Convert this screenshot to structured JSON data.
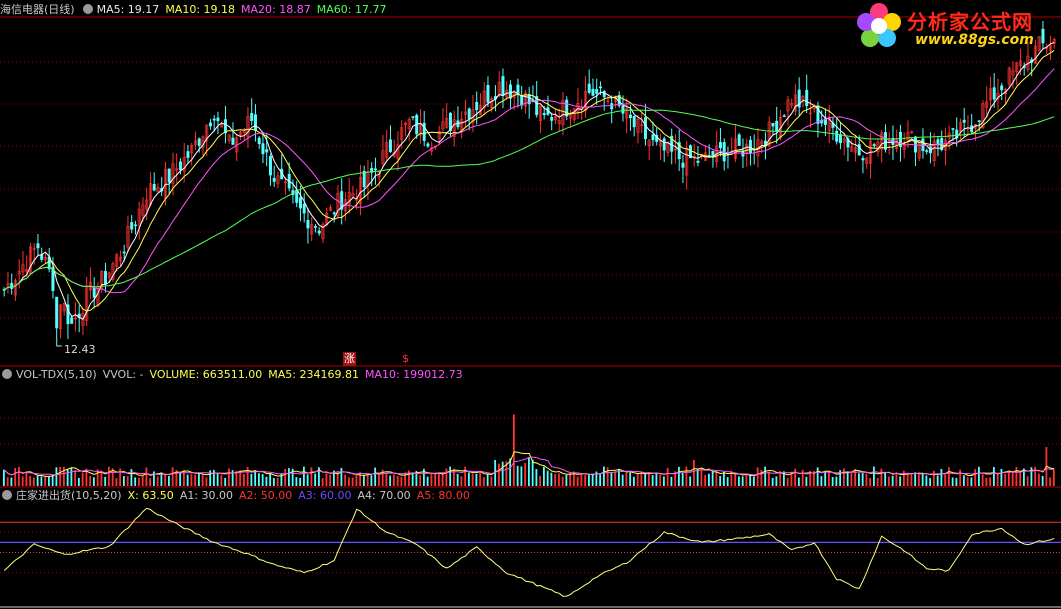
{
  "main_header": {
    "title": "海信电器(日线)",
    "ma5": "MA5: 19.17",
    "ma10": "MA10: 19.18",
    "ma20": "MA20: 18.87",
    "ma60": "MA60: 17.77"
  },
  "vol_header": {
    "title": "VOL-TDX(5,10)",
    "vvol": "VVOL: -",
    "volume": "VOLUME: 663511.00",
    "ma5": "MA5: 234169.81",
    "ma10": "MA10: 199012.73"
  },
  "ind_header": {
    "title": "庄家进出货(10,5,20)",
    "x": "X: 63.50",
    "a1": "A1: 30.00",
    "a2": "A2: 50.00",
    "a3": "A3: 60.00",
    "a4": "A4: 70.00",
    "a5": "A5: 80.00"
  },
  "low_label": "12.43",
  "flags": [
    "涨",
    "$"
  ],
  "logo": {
    "name": "分析家公式网",
    "url": "www.88gs.com"
  },
  "colors": {
    "up": "#ff3232",
    "down": "#54ffff",
    "ma5": "#ffffff",
    "ma10": "#ffff54",
    "ma20": "#ff54ff",
    "ma60": "#54ff54",
    "grid": "#8b0000",
    "a3": "#6c4cff"
  },
  "chart_data": [
    {
      "type": "candlestick",
      "name": "海信电器(日线)",
      "ylim": [
        12.43,
        22.5
      ],
      "price_anchors": [
        [
          0,
          14.2
        ],
        [
          5,
          15.0
        ],
        [
          9,
          15.6
        ],
        [
          14,
          14.2
        ],
        [
          18,
          13.1
        ],
        [
          22,
          14.0
        ],
        [
          27,
          14.6
        ],
        [
          32,
          15.6
        ],
        [
          38,
          17.3
        ],
        [
          44,
          17.8
        ],
        [
          50,
          18.6
        ],
        [
          56,
          19.9
        ],
        [
          60,
          18.8
        ],
        [
          66,
          19.6
        ],
        [
          72,
          17.8
        ],
        [
          78,
          16.8
        ],
        [
          84,
          16.2
        ],
        [
          90,
          17.1
        ],
        [
          96,
          17.5
        ],
        [
          102,
          18.6
        ],
        [
          108,
          19.5
        ],
        [
          114,
          19.0
        ],
        [
          120,
          19.6
        ],
        [
          126,
          20.1
        ],
        [
          132,
          20.7
        ],
        [
          138,
          20.4
        ],
        [
          144,
          19.6
        ],
        [
          150,
          20.0
        ],
        [
          156,
          20.5
        ],
        [
          162,
          20.2
        ],
        [
          168,
          19.4
        ],
        [
          174,
          18.7
        ],
        [
          180,
          18.4
        ],
        [
          186,
          18.3
        ],
        [
          192,
          18.6
        ],
        [
          198,
          18.7
        ],
        [
          204,
          19.2
        ],
        [
          210,
          20.3
        ],
        [
          216,
          19.8
        ],
        [
          222,
          19.2
        ],
        [
          228,
          18.6
        ],
        [
          234,
          18.9
        ],
        [
          240,
          19.1
        ],
        [
          246,
          18.7
        ],
        [
          252,
          18.9
        ],
        [
          258,
          19.5
        ],
        [
          264,
          20.4
        ],
        [
          270,
          21.2
        ],
        [
          276,
          21.9
        ],
        [
          280,
          22.1
        ]
      ],
      "low_annotation": 12.43
    },
    {
      "type": "bar",
      "name": "VOL-TDX(5,10)",
      "volume_last": 663511.0,
      "ma5_last": 234169.81,
      "ma10_last": 199012.73,
      "spikes": [
        [
          136,
          5.5
        ],
        [
          184,
          2.0
        ],
        [
          278,
          3.0
        ]
      ]
    },
    {
      "type": "line",
      "name": "庄家进出货(10,5,20)",
      "levels": {
        "A1": 30,
        "A2": 50,
        "A3": 60,
        "A4": 70,
        "A5": 80
      },
      "x_last": 63.5,
      "x_anchors": [
        [
          0,
          32
        ],
        [
          8,
          58
        ],
        [
          16,
          48
        ],
        [
          28,
          56
        ],
        [
          38,
          94
        ],
        [
          46,
          78
        ],
        [
          56,
          60
        ],
        [
          64,
          50
        ],
        [
          72,
          38
        ],
        [
          80,
          30
        ],
        [
          88,
          42
        ],
        [
          94,
          93
        ],
        [
          102,
          70
        ],
        [
          110,
          58
        ],
        [
          118,
          34
        ],
        [
          126,
          55
        ],
        [
          134,
          30
        ],
        [
          142,
          18
        ],
        [
          150,
          6
        ],
        [
          158,
          26
        ],
        [
          166,
          40
        ],
        [
          176,
          70
        ],
        [
          186,
          60
        ],
        [
          196,
          64
        ],
        [
          204,
          68
        ],
        [
          210,
          52
        ],
        [
          216,
          60
        ],
        [
          222,
          24
        ],
        [
          228,
          14
        ],
        [
          234,
          66
        ],
        [
          240,
          52
        ],
        [
          246,
          34
        ],
        [
          252,
          32
        ],
        [
          258,
          68
        ],
        [
          266,
          74
        ],
        [
          272,
          58
        ],
        [
          280,
          63.5
        ]
      ]
    }
  ]
}
